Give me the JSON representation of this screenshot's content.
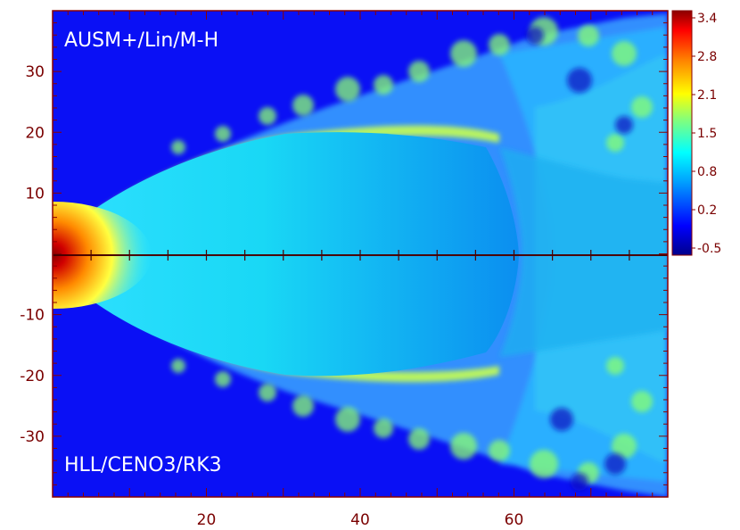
{
  "chart_data": {
    "type": "heatmap",
    "title": "",
    "xlabel": "",
    "ylabel": "",
    "xlim": [
      0,
      80
    ],
    "ylim": [
      -40,
      40
    ],
    "x_ticks": [
      20,
      40,
      60
    ],
    "y_ticks": [
      30,
      20,
      10,
      -10,
      -20,
      -30
    ],
    "panel_labels": {
      "top": "AUSM+/Lin/M-H",
      "bottom": "HLL/CENO3/RK3"
    },
    "colorbar": {
      "range": [
        -0.5,
        3.4
      ],
      "tick_labels": [
        "3.4",
        "2.8",
        "2.1",
        "1.5",
        "0.8",
        "0.2",
        "-0.5"
      ],
      "colormap": [
        "#00008b",
        "#0000ff",
        "#00a0ff",
        "#00ffff",
        "#7fff7f",
        "#ffff00",
        "#ff8000",
        "#ff0000",
        "#8b0000"
      ]
    },
    "frame_color": "#8b0000"
  }
}
